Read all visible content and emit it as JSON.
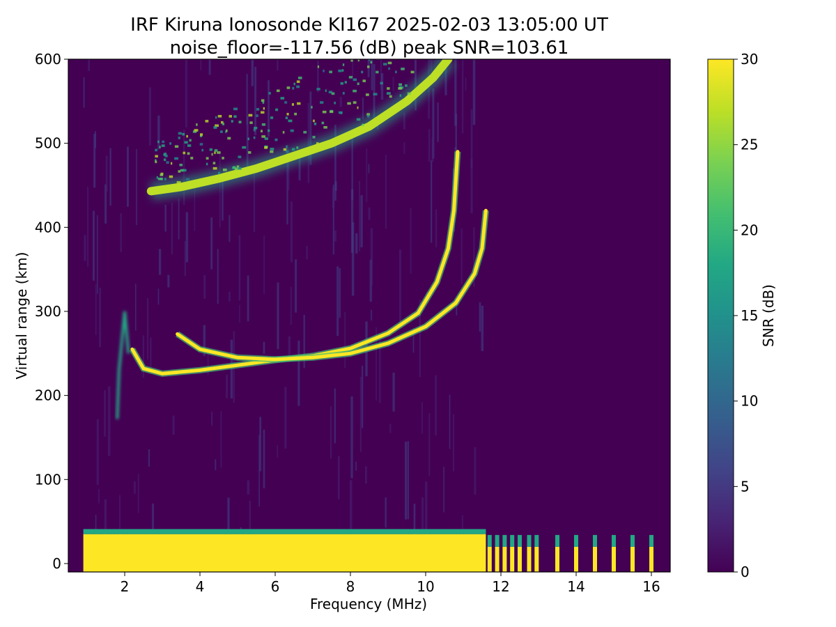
{
  "chart_data": {
    "type": "heatmap",
    "title": "IRF Kiruna Ionosonde KI167 2025-02-03 13:05:00  UT",
    "subtitle": "noise_floor=-117.56 (dB) peak SNR=103.61",
    "xlabel": "Frequency (MHz)",
    "ylabel": "Virtual range (km)",
    "xlim": [
      0.5,
      16.5
    ],
    "ylim": [
      -10,
      600
    ],
    "xticks": [
      2,
      4,
      6,
      8,
      10,
      12,
      14,
      16
    ],
    "yticks": [
      0,
      100,
      200,
      300,
      400,
      500,
      600
    ],
    "data_freq_range_mhz": [
      0.9,
      16.1
    ],
    "colorbar": {
      "label": "SNR (dB)",
      "range": [
        0,
        30
      ],
      "ticks": [
        0,
        5,
        10,
        15,
        20,
        25,
        30
      ],
      "colormap": "viridis",
      "low_color": "#440154",
      "high_color": "#fde725"
    },
    "features": [
      {
        "name": "ground-echo-band",
        "freq_mhz": [
          0.9,
          11.6
        ],
        "range_km": [
          -10,
          35
        ],
        "snr_db": 30
      },
      {
        "name": "E-F-trace-o",
        "points": [
          [
            2.2,
            255
          ],
          [
            2.5,
            232
          ],
          [
            3.0,
            226
          ],
          [
            4.0,
            230
          ],
          [
            5.0,
            236
          ],
          [
            6.0,
            242
          ],
          [
            7.0,
            247
          ],
          [
            8.0,
            256
          ],
          [
            9.0,
            274
          ],
          [
            9.8,
            298
          ],
          [
            10.3,
            335
          ],
          [
            10.6,
            375
          ],
          [
            10.75,
            420
          ],
          [
            10.85,
            490
          ]
        ],
        "snr_db": 30
      },
      {
        "name": "F-trace-x",
        "points": [
          [
            3.4,
            273
          ],
          [
            4.0,
            255
          ],
          [
            5.0,
            245
          ],
          [
            6.0,
            243
          ],
          [
            7.0,
            245
          ],
          [
            8.0,
            250
          ],
          [
            9.0,
            262
          ],
          [
            10.0,
            282
          ],
          [
            10.8,
            310
          ],
          [
            11.3,
            345
          ],
          [
            11.5,
            375
          ],
          [
            11.6,
            420
          ]
        ],
        "snr_db": 30
      },
      {
        "name": "multihop-trace",
        "points": [
          [
            2.7,
            443
          ],
          [
            3.5,
            448
          ],
          [
            4.5,
            458
          ],
          [
            5.5,
            470
          ],
          [
            6.5,
            485
          ],
          [
            7.5,
            500
          ],
          [
            8.5,
            520
          ],
          [
            9.5,
            550
          ],
          [
            10.2,
            578
          ],
          [
            10.6,
            600
          ]
        ],
        "snr_db": 28
      },
      {
        "name": "spread-F-cloud",
        "freq_mhz": [
          2.6,
          10.6
        ],
        "range_km": [
          445,
          600
        ],
        "snr_db": 20
      },
      {
        "name": "spike-2MHz",
        "points": [
          [
            1.8,
            172
          ],
          [
            1.85,
            230
          ],
          [
            2.0,
            300
          ],
          [
            2.1,
            250
          ]
        ],
        "snr_db": 18
      }
    ],
    "high_freq_spikes_mhz": [
      11.7,
      11.9,
      12.1,
      12.3,
      12.5,
      12.75,
      12.95,
      13.5,
      14.0,
      14.5,
      15.0,
      15.5,
      16.0
    ]
  }
}
